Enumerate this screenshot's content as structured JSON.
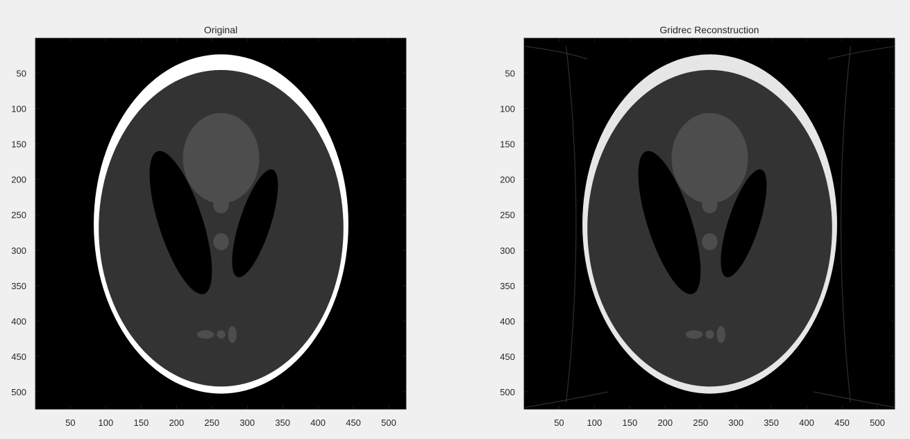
{
  "figure": {
    "background": "#f0f0f0",
    "panels": [
      {
        "id": "original",
        "title": "Original",
        "variant": "clean",
        "xticks": [
          "50",
          "100",
          "150",
          "200",
          "250",
          "300",
          "350",
          "400",
          "450",
          "500"
        ],
        "yticks": [
          "50",
          "100",
          "150",
          "200",
          "250",
          "300",
          "350",
          "400",
          "450",
          "500"
        ],
        "colormap": "gray"
      },
      {
        "id": "gridrec",
        "title": "Gridrec Reconstruction",
        "variant": "reconstruction",
        "xticks": [
          "50",
          "100",
          "150",
          "200",
          "250",
          "300",
          "350",
          "400",
          "450",
          "500"
        ],
        "yticks": [
          "50",
          "100",
          "150",
          "200",
          "250",
          "300",
          "350",
          "400",
          "450",
          "500"
        ],
        "colormap": "gray"
      }
    ]
  },
  "colors": {
    "image_background": "#000000",
    "skull": "#ffffff",
    "skull_reconstruction": "#e6e6e6",
    "brain_tissue": "#333333",
    "upper_ellipse": "#4d4d4d",
    "small_ellipses": "#4d4d4d",
    "ventricles": "#000000"
  }
}
